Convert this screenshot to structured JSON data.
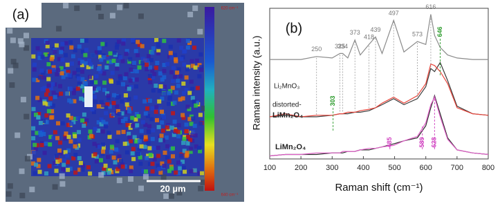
{
  "panel_a": {
    "label": "(a)",
    "colorbar_top": "620 cm⁻¹",
    "colorbar_bottom": "640 cm⁻¹",
    "scale_bar": "20 µm"
  },
  "chart_data": {
    "type": "line",
    "panel_label": "(b)",
    "xlabel": "Raman shift (cm⁻¹)",
    "ylabel": "Raman intensity (a.u.)",
    "xlim": [
      100,
      800
    ],
    "xticks": [
      100,
      200,
      300,
      400,
      500,
      600,
      700,
      800
    ],
    "ylim": [
      0,
      100
    ],
    "x": [
      100,
      150,
      200,
      250,
      300,
      325,
      334,
      350,
      373,
      390,
      418,
      439,
      460,
      497,
      530,
      573,
      600,
      616,
      628,
      646,
      670,
      700,
      750,
      800
    ],
    "series": [
      {
        "color": "#8a8a8a",
        "values": [
          66,
          66,
          66,
          68,
          67,
          70,
          70,
          67,
          79,
          69,
          76,
          81,
          70,
          92,
          71,
          78,
          76,
          96,
          82,
          74,
          69,
          67,
          66,
          66
        ]
      },
      {
        "color": "#3a3a3a",
        "values": [
          28,
          29,
          28,
          28,
          29,
          30,
          30,
          30,
          31,
          31,
          32,
          34,
          36,
          40,
          36,
          40,
          48,
          60,
          58,
          64,
          52,
          35,
          30,
          29
        ]
      },
      {
        "color": "#e8463c",
        "values": [
          28,
          30,
          28,
          29,
          29,
          30,
          30,
          31,
          31,
          32,
          33,
          34,
          37,
          41,
          37,
          42,
          50,
          63,
          62,
          58,
          50,
          34,
          30,
          29
        ]
      },
      {
        "color": "#2a2a2a",
        "values": [
          2,
          3,
          3,
          3,
          4,
          4,
          4,
          5,
          5,
          6,
          6,
          7,
          8,
          10,
          12,
          14,
          22,
          34,
          42,
          30,
          14,
          6,
          4,
          3
        ]
      },
      {
        "color": "#e060c8",
        "values": [
          2,
          3,
          3,
          4,
          4,
          4,
          5,
          5,
          5,
          6,
          7,
          7,
          8,
          9,
          12,
          15,
          24,
          36,
          41,
          28,
          13,
          6,
          4,
          3
        ]
      }
    ],
    "curve_labels": [
      "Li₂MnO₃",
      "distorted-",
      "LiMn₂O₄",
      "LiMn₂O₄"
    ],
    "peak_groups": [
      {
        "color": "#777777",
        "peaks": [
          250,
          325,
          334,
          373,
          418,
          439,
          497,
          573,
          616
        ]
      },
      {
        "color": "#2a9a2a",
        "peaks": [
          303,
          646
        ]
      },
      {
        "color": "#d040c0",
        "peaks": [
          485,
          589,
          628
        ]
      }
    ]
  }
}
